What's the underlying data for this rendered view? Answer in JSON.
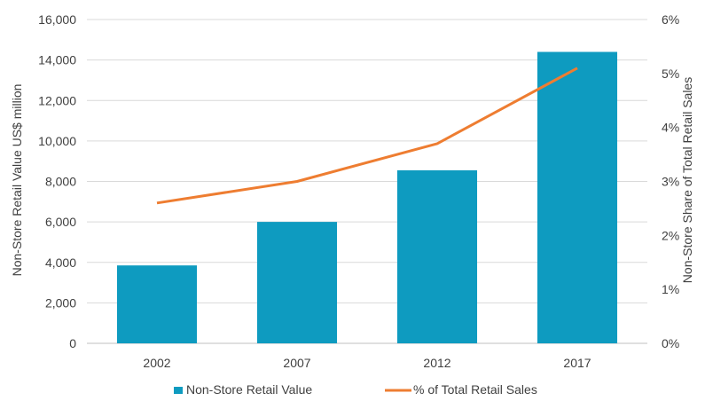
{
  "chart_data": {
    "type": "bar",
    "categories": [
      "2002",
      "2007",
      "2012",
      "2017"
    ],
    "series": [
      {
        "name": "Non-Store Retail Value",
        "type": "bar",
        "axis": "left",
        "color": "#0e9bc0",
        "values": [
          3850,
          6000,
          8550,
          14400
        ]
      },
      {
        "name": "% of Total Retail Sales",
        "type": "line",
        "axis": "right",
        "color": "#ee7d31",
        "values": [
          2.6,
          3.0,
          3.7,
          5.1
        ]
      }
    ],
    "ylabel": "Non-Store Retail Value US$ million",
    "y2label": "Non-Store Share of Total Retail Sales",
    "ylim": [
      0,
      16000
    ],
    "y2lim": [
      0,
      6
    ],
    "yticks": [
      "0",
      "2,000",
      "4,000",
      "6,000",
      "8,000",
      "10,000",
      "12,000",
      "14,000",
      "16,000"
    ],
    "y2ticks": [
      "0%",
      "1%",
      "2%",
      "3%",
      "4%",
      "5%",
      "6%"
    ],
    "grid": true,
    "legend": "bottom"
  }
}
